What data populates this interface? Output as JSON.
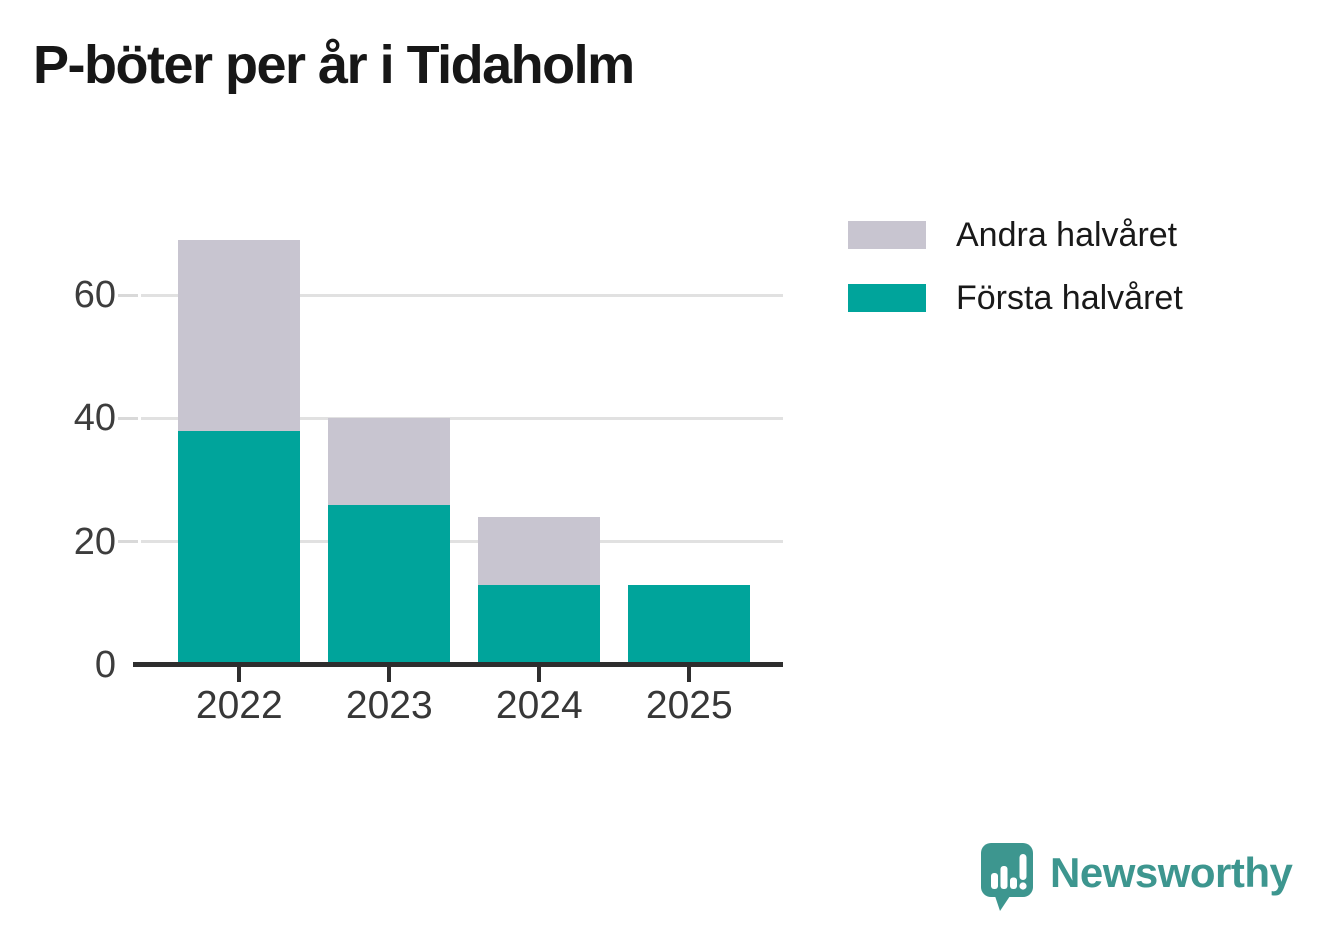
{
  "title": "P-böter per år i Tidaholm",
  "legend": [
    {
      "label": "Andra halvåret",
      "color": "#c8c5d0"
    },
    {
      "label": "Första halvåret",
      "color": "#00a49b"
    }
  ],
  "chart_data": {
    "type": "bar",
    "stacked": true,
    "title": "P-böter per år i Tidaholm",
    "categories": [
      "2022",
      "2023",
      "2024",
      "2025"
    ],
    "series": [
      {
        "name": "Första halvåret",
        "color": "#00a49b",
        "values": [
          38,
          26,
          13,
          13
        ]
      },
      {
        "name": "Andra halvåret",
        "color": "#c8c5d0",
        "values": [
          31,
          14,
          11,
          0
        ]
      }
    ],
    "totals": [
      69,
      40,
      24,
      13
    ],
    "xlabel": "",
    "ylabel": "",
    "yticks": [
      0,
      20,
      40,
      60
    ],
    "ylim": [
      0,
      73
    ],
    "grid": true,
    "legend_position": "top-right"
  },
  "footer": {
    "brand": "Newsworthy"
  },
  "colors": {
    "bar_primary": "#00a49b",
    "bar_secondary": "#c8c5d0",
    "gridline": "#e1e1e1",
    "axis": "#2e2e2e",
    "tick_text": "#3d3d3d",
    "title_text": "#171717",
    "brand": "#3d968f"
  }
}
